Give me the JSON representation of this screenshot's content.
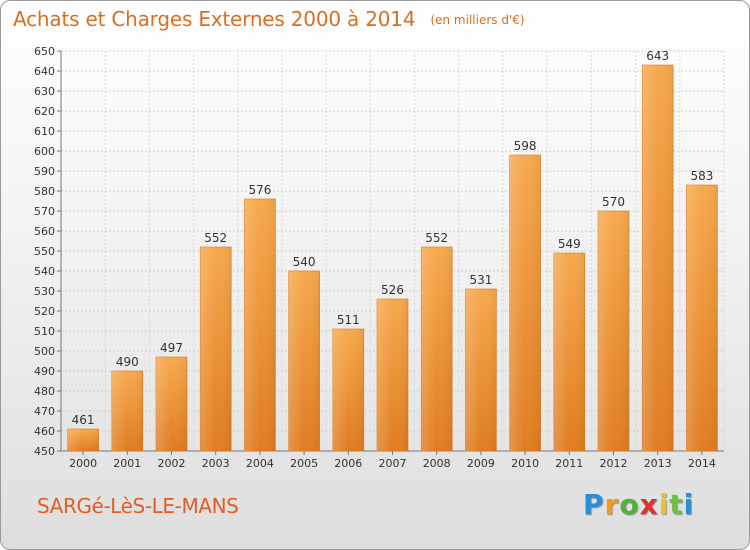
{
  "title": "Achats et Charges Externes 2000 à 2014",
  "unit_label": "(en milliers d'€)",
  "city": "SARGé-LèS-LE-MANS",
  "logo": "Proxiti",
  "colors": {
    "title": "#d66f22",
    "city": "#e45c25",
    "bar_top": "#f7a94c",
    "bar_bottom": "#e07d22"
  },
  "chart_data": {
    "type": "bar",
    "categories": [
      "2000",
      "2001",
      "2002",
      "2003",
      "2004",
      "2005",
      "2006",
      "2007",
      "2008",
      "2009",
      "2010",
      "2011",
      "2012",
      "2013",
      "2014"
    ],
    "values": [
      461,
      490,
      497,
      552,
      576,
      540,
      511,
      526,
      552,
      531,
      598,
      549,
      570,
      643,
      583
    ],
    "yticks": [
      450,
      460,
      470,
      480,
      490,
      500,
      510,
      520,
      530,
      540,
      550,
      560,
      570,
      580,
      590,
      600,
      610,
      620,
      630,
      640,
      650
    ],
    "ylim": [
      450,
      650
    ],
    "grid": true,
    "title": "Achats et Charges Externes 2000 à 2014",
    "subtitle": "(en milliers d'€)",
    "xlabel": "",
    "ylabel": ""
  }
}
